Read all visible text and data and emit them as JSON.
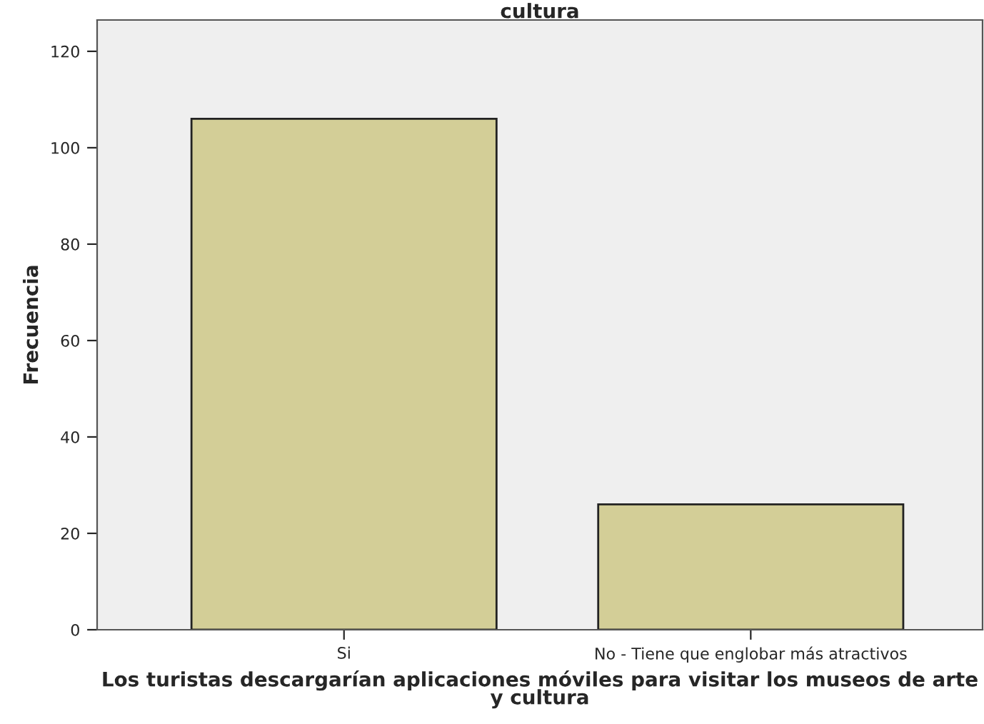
{
  "chart_data": {
    "type": "bar",
    "title": "cultura",
    "xlabel": "Los turistas descargarían aplicaciones móviles para visitar los museos de arte y cultura",
    "ylabel": "Frecuencia",
    "categories": [
      "Si",
      "No - Tiene que englobar más atractivos"
    ],
    "values": [
      106,
      26
    ],
    "color": "#d3ce97",
    "ylim": [
      0,
      126.5
    ],
    "yticks": [
      0,
      20,
      40,
      60,
      80,
      100,
      120
    ],
    "grid": false,
    "legend": false
  }
}
